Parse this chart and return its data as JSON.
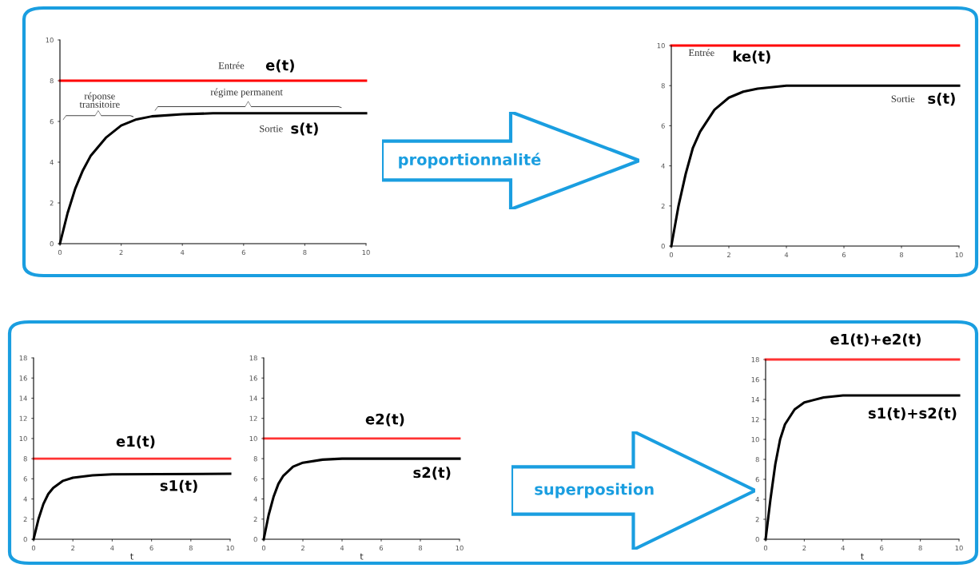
{
  "chart_data": [
    {
      "type": "line",
      "xlim": [
        0,
        10
      ],
      "ylim": [
        0,
        10
      ],
      "xticks": [
        0,
        2,
        4,
        6,
        8,
        10
      ],
      "yticks": [
        0,
        2,
        4,
        6,
        8,
        10
      ],
      "series": [
        {
          "name": "e(t)",
          "color": "#ff0000",
          "x": [
            0,
            10
          ],
          "values": [
            8,
            8
          ]
        },
        {
          "name": "s(t)",
          "color": "#000000",
          "x": [
            0,
            0.25,
            0.5,
            0.75,
            1,
            1.5,
            2,
            2.5,
            3,
            4,
            5,
            10
          ],
          "values": [
            0,
            1.5,
            2.7,
            3.6,
            4.3,
            5.2,
            5.8,
            6.1,
            6.25,
            6.35,
            6.4,
            6.4
          ]
        }
      ],
      "annotations": [
        "Entrée",
        "Sortie",
        "réponse\ntransitoire",
        "régime permanent"
      ]
    },
    {
      "type": "other",
      "annotations": [
        "proportionnalité"
      ]
    },
    {
      "type": "line",
      "xlim": [
        0,
        10
      ],
      "ylim": [
        0,
        10
      ],
      "xticks": [
        0,
        2,
        4,
        6,
        8,
        10
      ],
      "yticks": [
        0,
        2,
        4,
        6,
        8,
        10
      ],
      "series": [
        {
          "name": "ke(t)",
          "color": "#ff0000",
          "x": [
            0,
            10
          ],
          "values": [
            10,
            10
          ]
        },
        {
          "name": "s(t)",
          "color": "#000000",
          "x": [
            0,
            0.25,
            0.5,
            0.75,
            1,
            1.5,
            2,
            2.5,
            3,
            4,
            10
          ],
          "values": [
            0,
            2,
            3.6,
            4.9,
            5.7,
            6.8,
            7.4,
            7.7,
            7.85,
            8,
            8
          ]
        }
      ],
      "annotations": [
        "Entrée",
        "Sortie"
      ]
    },
    {
      "type": "line",
      "xlim": [
        0,
        10
      ],
      "ylim": [
        0,
        18
      ],
      "xticks": [
        0,
        2,
        4,
        6,
        8,
        10
      ],
      "yticks": [
        0,
        2,
        4,
        6,
        8,
        10,
        12,
        14,
        16,
        18
      ],
      "xlabel": "t",
      "series": [
        {
          "name": "e1(t)",
          "color": "#ff3333",
          "x": [
            0,
            10
          ],
          "values": [
            8,
            8
          ]
        },
        {
          "name": "s1(t)",
          "color": "#000000",
          "x": [
            0,
            0.25,
            0.5,
            0.75,
            1,
            1.5,
            2,
            3,
            4,
            10
          ],
          "values": [
            0,
            2,
            3.5,
            4.5,
            5.1,
            5.8,
            6.1,
            6.35,
            6.45,
            6.5
          ]
        }
      ]
    },
    {
      "type": "line",
      "xlim": [
        0,
        10
      ],
      "ylim": [
        0,
        18
      ],
      "xticks": [
        0,
        2,
        4,
        6,
        8,
        10
      ],
      "yticks": [
        0,
        2,
        4,
        6,
        8,
        10,
        12,
        14,
        16,
        18
      ],
      "xlabel": "t",
      "series": [
        {
          "name": "e2(t)",
          "color": "#ff3333",
          "x": [
            0,
            10
          ],
          "values": [
            10,
            10
          ]
        },
        {
          "name": "s2(t)",
          "color": "#000000",
          "x": [
            0,
            0.25,
            0.5,
            0.75,
            1,
            1.5,
            2,
            3,
            4,
            10
          ],
          "values": [
            0,
            2.4,
            4.2,
            5.5,
            6.3,
            7.2,
            7.6,
            7.9,
            8,
            8
          ]
        }
      ]
    },
    {
      "type": "other",
      "annotations": [
        "superposition"
      ]
    },
    {
      "type": "line",
      "xlim": [
        0,
        10
      ],
      "ylim": [
        0,
        18
      ],
      "xticks": [
        0,
        2,
        4,
        6,
        8,
        10
      ],
      "yticks": [
        0,
        2,
        4,
        6,
        8,
        10,
        12,
        14,
        16,
        18
      ],
      "xlabel": "t",
      "series": [
        {
          "name": "e1(t)+e2(t)",
          "color": "#ff3333",
          "x": [
            0,
            10
          ],
          "values": [
            18,
            18
          ]
        },
        {
          "name": "s1(t)+s2(t)",
          "color": "#000000",
          "x": [
            0,
            0.25,
            0.5,
            0.75,
            1,
            1.5,
            2,
            3,
            4,
            10
          ],
          "values": [
            0,
            4,
            7.5,
            10,
            11.5,
            13,
            13.7,
            14.2,
            14.4,
            14.4
          ]
        }
      ]
    }
  ]
}
